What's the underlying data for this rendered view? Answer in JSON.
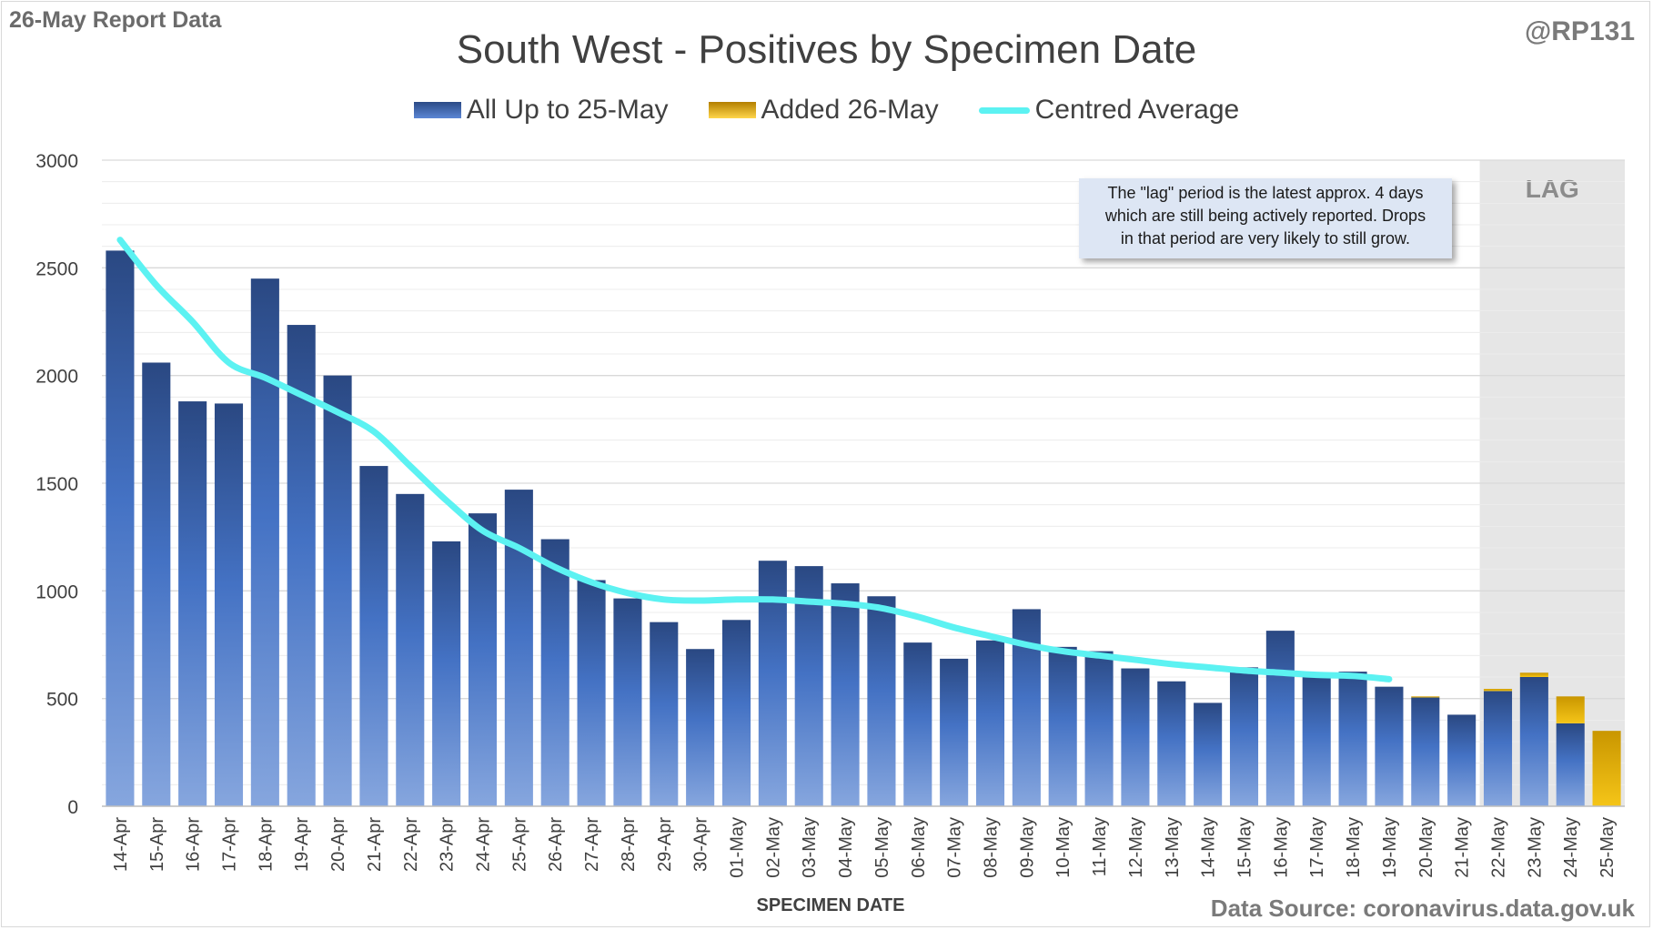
{
  "header": {
    "report_label": "26-May Report Data",
    "handle": "@RP131"
  },
  "annotation": {
    "line1": "The \"lag\" period is the latest approx. 4 days",
    "line2": "which are still being actively reported. Drops",
    "line3": "in that period are very likely to still grow.",
    "lag_label": "LAG"
  },
  "footer": {
    "source": "Data Source: coronavirus.data.gov.uk"
  },
  "colors": {
    "existing": "#3a63b3",
    "added": "#e6b21a",
    "average_line": "#5cf2f2",
    "lag_shade": "#e6e6e6",
    "gridline": "#d9d9d9"
  },
  "chart_data": {
    "type": "bar",
    "stacked": true,
    "title": "South West - Positives by Specimen Date",
    "xlabel": "SPECIMEN DATE",
    "ylabel": "",
    "ylim": [
      0,
      3000
    ],
    "yticks": [
      0,
      500,
      1000,
      1500,
      2000,
      2500,
      3000
    ],
    "grid": true,
    "legend_position": "top",
    "categories": [
      "14-Apr",
      "15-Apr",
      "16-Apr",
      "17-Apr",
      "18-Apr",
      "19-Apr",
      "20-Apr",
      "21-Apr",
      "22-Apr",
      "23-Apr",
      "24-Apr",
      "25-Apr",
      "26-Apr",
      "27-Apr",
      "28-Apr",
      "29-Apr",
      "30-Apr",
      "01-May",
      "02-May",
      "03-May",
      "04-May",
      "05-May",
      "06-May",
      "07-May",
      "08-May",
      "09-May",
      "10-May",
      "11-May",
      "12-May",
      "13-May",
      "14-May",
      "15-May",
      "16-May",
      "17-May",
      "18-May",
      "19-May",
      "20-May",
      "21-May",
      "22-May",
      "23-May",
      "24-May",
      "25-May"
    ],
    "series": [
      {
        "name": "All Up to 25-May",
        "color": "#3a63b3",
        "values": [
          2580,
          2060,
          1880,
          1870,
          2450,
          2235,
          2000,
          1580,
          1450,
          1230,
          1360,
          1470,
          1240,
          1050,
          965,
          855,
          730,
          865,
          1140,
          1115,
          1035,
          975,
          760,
          685,
          770,
          915,
          740,
          720,
          640,
          580,
          480,
          645,
          815,
          605,
          625,
          555,
          505,
          425,
          535,
          600,
          385,
          0
        ]
      },
      {
        "name": "Added 26-May",
        "color": "#e6b21a",
        "values": [
          0,
          0,
          0,
          0,
          0,
          0,
          0,
          0,
          0,
          0,
          0,
          0,
          0,
          0,
          0,
          0,
          0,
          0,
          0,
          0,
          0,
          0,
          0,
          0,
          0,
          0,
          0,
          0,
          0,
          0,
          0,
          0,
          0,
          0,
          0,
          0,
          5,
          0,
          10,
          20,
          125,
          350
        ]
      },
      {
        "name": "Centred Average",
        "type": "line",
        "color": "#5cf2f2",
        "values": [
          2630,
          2420,
          2250,
          2060,
          1990,
          1910,
          1830,
          1740,
          1580,
          1420,
          1280,
          1200,
          1110,
          1040,
          990,
          960,
          955,
          960,
          960,
          950,
          940,
          920,
          880,
          830,
          790,
          750,
          720,
          700,
          680,
          660,
          645,
          630,
          620,
          610,
          605,
          590,
          null,
          null,
          null,
          null,
          null,
          null
        ]
      }
    ],
    "lag_period": [
      "22-May",
      "23-May",
      "24-May",
      "25-May"
    ]
  }
}
